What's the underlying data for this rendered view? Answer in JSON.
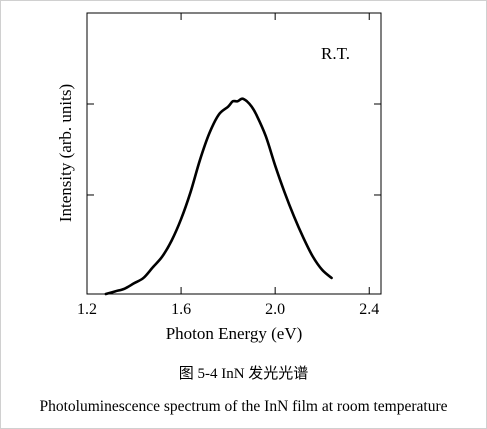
{
  "figure": {
    "caption_cn": "图 5-4 InN 发光光谱",
    "caption_en": "Photoluminescence spectrum of the InN film at room temperature"
  },
  "chart_data": {
    "type": "line",
    "title": "",
    "xlabel": "Photon Energy (eV)",
    "ylabel": "Intensity (arb. units)",
    "annotation": "R.T.",
    "xlim": [
      1.2,
      2.45
    ],
    "ylim": [
      0,
      1.05
    ],
    "xticks": [
      1.2,
      1.6,
      2.0,
      2.4
    ],
    "xtick_labels": [
      "1.2",
      "1.6",
      "2.0",
      "2.4"
    ],
    "yticks": [
      0.37,
      0.71
    ],
    "ytick_labels": [
      "",
      ""
    ],
    "grid": false,
    "series": [
      {
        "x": [
          1.28,
          1.32,
          1.36,
          1.4,
          1.44,
          1.48,
          1.52,
          1.56,
          1.6,
          1.64,
          1.68,
          1.72,
          1.76,
          1.8,
          1.82,
          1.84,
          1.86,
          1.88,
          1.9,
          1.92,
          1.96,
          2.0,
          2.04,
          2.08,
          2.12,
          2.16,
          2.2,
          2.24
        ],
        "y": [
          0.0,
          0.01,
          0.02,
          0.04,
          0.06,
          0.1,
          0.14,
          0.2,
          0.28,
          0.38,
          0.5,
          0.6,
          0.67,
          0.7,
          0.72,
          0.72,
          0.73,
          0.72,
          0.7,
          0.67,
          0.59,
          0.48,
          0.38,
          0.29,
          0.21,
          0.14,
          0.09,
          0.06
        ]
      }
    ]
  }
}
